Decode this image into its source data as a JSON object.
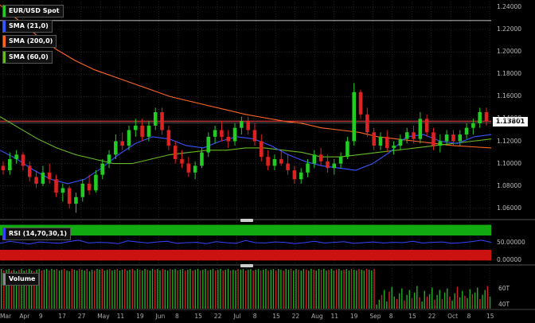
{
  "colors": {
    "background": "#000000",
    "grid": "#3a3a3a",
    "up_candle": "#22cc22",
    "down_candle": "#dd2222",
    "sma21": "#3355ff",
    "sma200": "#ff6622",
    "sma60": "#66bb22",
    "resistance": "#ff4444",
    "rsi_line": "#3344ff",
    "rsi_overbought": "#11aa11",
    "rsi_oversold": "#cc1111",
    "volume_up": "#22aa22",
    "volume_down": "#cc2222"
  },
  "legend": {
    "symbol": "EUR/USD Spot",
    "sma21": "SMA (21,0)",
    "sma200": "SMA (200,0)",
    "sma60": "SMA (60,0)",
    "rsi": "RSI (14,70,30,1)",
    "volume": "Volume"
  },
  "price_tag": "1.13801",
  "chart_data": [
    {
      "type": "candlestick",
      "title": "EUR/USD Spot",
      "y_ticks": [
        "1.24000",
        "1.22000",
        "1.20000",
        "1.18000",
        "1.16000",
        "1.14000",
        "1.12000",
        "1.10000",
        "1.08000",
        "1.06000"
      ],
      "ylim": [
        1.052,
        1.245
      ],
      "last_price": 1.13801,
      "x_ticks": [
        "Mar",
        "Apr",
        "9",
        "17",
        "27",
        "May",
        "11",
        "19",
        "Jun",
        "8",
        "15",
        "22",
        "Jul",
        "8",
        "15",
        "22",
        "Aug",
        "11",
        "19",
        "Sep",
        "8",
        "15",
        "22",
        "Oct",
        "8",
        "15"
      ],
      "candles": [
        [
          1.098,
          1.102,
          1.09,
          1.094
        ],
        [
          1.094,
          1.11,
          1.09,
          1.104
        ],
        [
          1.104,
          1.112,
          1.1,
          1.108
        ],
        [
          1.108,
          1.11,
          1.094,
          1.098
        ],
        [
          1.098,
          1.102,
          1.084,
          1.088
        ],
        [
          1.088,
          1.094,
          1.078,
          1.082
        ],
        [
          1.082,
          1.098,
          1.08,
          1.092
        ],
        [
          1.092,
          1.1,
          1.082,
          1.086
        ],
        [
          1.086,
          1.09,
          1.07,
          1.074
        ],
        [
          1.074,
          1.082,
          1.066,
          1.078
        ],
        [
          1.078,
          1.08,
          1.06,
          1.064
        ],
        [
          1.064,
          1.074,
          1.056,
          1.07
        ],
        [
          1.07,
          1.086,
          1.066,
          1.082
        ],
        [
          1.082,
          1.09,
          1.072,
          1.076
        ],
        [
          1.076,
          1.094,
          1.074,
          1.09
        ],
        [
          1.09,
          1.104,
          1.086,
          1.1
        ],
        [
          1.1,
          1.112,
          1.096,
          1.108
        ],
        [
          1.108,
          1.126,
          1.104,
          1.12
        ],
        [
          1.12,
          1.128,
          1.112,
          1.116
        ],
        [
          1.116,
          1.134,
          1.112,
          1.13
        ],
        [
          1.13,
          1.14,
          1.124,
          1.134
        ],
        [
          1.134,
          1.14,
          1.12,
          1.124
        ],
        [
          1.124,
          1.138,
          1.12,
          1.134
        ],
        [
          1.134,
          1.15,
          1.13,
          1.146
        ],
        [
          1.146,
          1.15,
          1.126,
          1.13
        ],
        [
          1.13,
          1.134,
          1.112,
          1.116
        ],
        [
          1.116,
          1.12,
          1.1,
          1.104
        ],
        [
          1.104,
          1.112,
          1.096,
          1.1
        ],
        [
          1.1,
          1.106,
          1.088,
          1.092
        ],
        [
          1.092,
          1.102,
          1.086,
          1.098
        ],
        [
          1.098,
          1.114,
          1.096,
          1.11
        ],
        [
          1.11,
          1.128,
          1.106,
          1.124
        ],
        [
          1.124,
          1.134,
          1.118,
          1.13
        ],
        [
          1.13,
          1.138,
          1.12,
          1.124
        ],
        [
          1.124,
          1.13,
          1.114,
          1.12
        ],
        [
          1.12,
          1.136,
          1.116,
          1.132
        ],
        [
          1.132,
          1.142,
          1.126,
          1.138
        ],
        [
          1.138,
          1.142,
          1.126,
          1.13
        ],
        [
          1.13,
          1.136,
          1.116,
          1.12
        ],
        [
          1.12,
          1.126,
          1.102,
          1.106
        ],
        [
          1.106,
          1.112,
          1.094,
          1.098
        ],
        [
          1.098,
          1.108,
          1.094,
          1.104
        ],
        [
          1.104,
          1.112,
          1.098,
          1.1
        ],
        [
          1.1,
          1.108,
          1.09,
          1.094
        ],
        [
          1.094,
          1.098,
          1.082,
          1.086
        ],
        [
          1.086,
          1.096,
          1.082,
          1.092
        ],
        [
          1.092,
          1.104,
          1.088,
          1.1
        ],
        [
          1.1,
          1.112,
          1.096,
          1.108
        ],
        [
          1.108,
          1.114,
          1.098,
          1.102
        ],
        [
          1.102,
          1.108,
          1.092,
          1.096
        ],
        [
          1.096,
          1.104,
          1.09,
          1.1
        ],
        [
          1.1,
          1.11,
          1.096,
          1.106
        ],
        [
          1.106,
          1.124,
          1.104,
          1.12
        ],
        [
          1.12,
          1.172,
          1.116,
          1.164
        ],
        [
          1.164,
          1.166,
          1.14,
          1.144
        ],
        [
          1.144,
          1.15,
          1.124,
          1.128
        ],
        [
          1.128,
          1.132,
          1.112,
          1.116
        ],
        [
          1.116,
          1.128,
          1.112,
          1.124
        ],
        [
          1.124,
          1.13,
          1.11,
          1.114
        ],
        [
          1.114,
          1.12,
          1.108,
          1.116
        ],
        [
          1.116,
          1.126,
          1.112,
          1.122
        ],
        [
          1.122,
          1.132,
          1.118,
          1.128
        ],
        [
          1.128,
          1.134,
          1.118,
          1.122
        ],
        [
          1.122,
          1.146,
          1.118,
          1.14
        ],
        [
          1.14,
          1.144,
          1.124,
          1.128
        ],
        [
          1.128,
          1.132,
          1.112,
          1.116
        ],
        [
          1.116,
          1.126,
          1.11,
          1.12
        ],
        [
          1.12,
          1.13,
          1.116,
          1.126
        ],
        [
          1.126,
          1.13,
          1.116,
          1.12
        ],
        [
          1.12,
          1.13,
          1.116,
          1.126
        ],
        [
          1.126,
          1.136,
          1.122,
          1.132
        ],
        [
          1.132,
          1.14,
          1.126,
          1.136
        ],
        [
          1.136,
          1.15,
          1.132,
          1.146
        ],
        [
          1.146,
          1.15,
          1.134,
          1.138
        ]
      ],
      "sma_21": [
        1.112,
        1.104,
        1.094,
        1.086,
        1.082,
        1.086,
        1.096,
        1.108,
        1.118,
        1.124,
        1.122,
        1.116,
        1.114,
        1.12,
        1.124,
        1.122,
        1.116,
        1.108,
        1.102,
        1.098,
        1.096,
        1.094,
        1.1,
        1.11,
        1.124,
        1.126,
        1.12,
        1.118,
        1.124,
        1.126
      ],
      "sma_200": [
        1.242,
        1.228,
        1.214,
        1.202,
        1.192,
        1.184,
        1.178,
        1.172,
        1.166,
        1.16,
        1.156,
        1.152,
        1.148,
        1.144,
        1.141,
        1.138,
        1.136,
        1.132,
        1.13,
        1.128,
        1.124,
        1.122,
        1.12,
        1.118,
        1.116,
        1.115,
        1.114
      ],
      "sma_60": [
        1.142,
        1.132,
        1.122,
        1.114,
        1.108,
        1.104,
        1.1,
        1.1,
        1.104,
        1.108,
        1.11,
        1.112,
        1.112,
        1.114,
        1.114,
        1.112,
        1.11,
        1.106,
        1.106,
        1.108,
        1.11,
        1.112,
        1.114,
        1.116,
        1.118,
        1.12,
        1.122
      ]
    },
    {
      "type": "line",
      "title": "RSI (14,70,30,1)",
      "y_ticks": [
        "50.00000",
        "0.00000"
      ],
      "ylim": [
        -8,
        108
      ],
      "overbought": 70,
      "oversold": 30,
      "values": [
        48,
        54,
        50,
        46,
        52,
        50,
        48,
        53,
        57,
        49,
        51,
        50,
        47,
        55,
        52,
        49,
        52,
        54,
        48,
        50,
        51,
        47,
        53,
        50,
        48,
        56,
        50,
        49,
        52,
        51,
        47,
        50,
        54,
        49,
        51,
        53,
        48,
        50,
        52,
        49,
        51,
        50,
        54,
        49,
        51,
        52,
        48,
        50,
        53,
        57,
        51
      ]
    },
    {
      "type": "bar",
      "title": "Volume",
      "y_ticks": [
        "60T",
        "40T"
      ],
      "ylim": [
        35,
        85
      ],
      "values": [
        84,
        82,
        83,
        84,
        82,
        83,
        81,
        83,
        84,
        82,
        83,
        84,
        82,
        81,
        83,
        84,
        82,
        83,
        84,
        82,
        84,
        83,
        84,
        82,
        83,
        84,
        82,
        81,
        84,
        83,
        82,
        84,
        83,
        82,
        84,
        81,
        83,
        82,
        84,
        83,
        84,
        82,
        83,
        84,
        82,
        83,
        84,
        82,
        83,
        84,
        82,
        83,
        84,
        82,
        84,
        83,
        82,
        84,
        83,
        82,
        84,
        83,
        84,
        82,
        84,
        83,
        82,
        84,
        83,
        84,
        82,
        83,
        84,
        82,
        83,
        84,
        82,
        83,
        84,
        82,
        83,
        84,
        82,
        83,
        84,
        82,
        83,
        84,
        82,
        83,
        84,
        82,
        83,
        82,
        84,
        83,
        84,
        82,
        83,
        84,
        82,
        83,
        84,
        82,
        83,
        84,
        82,
        83,
        84,
        82,
        84,
        83,
        82,
        84,
        83,
        84,
        82,
        84,
        83,
        82,
        84,
        83,
        82,
        84,
        83,
        82,
        84,
        83,
        84,
        82,
        83,
        84,
        82,
        83,
        84,
        82,
        83,
        84,
        82,
        84,
        83,
        82,
        84,
        83,
        82,
        84,
        83,
        82,
        84,
        40,
        46,
        52,
        58,
        44,
        56,
        62,
        50,
        47,
        54,
        60,
        45,
        52,
        58,
        48,
        55,
        63,
        49,
        44,
        57,
        50,
        53,
        61,
        46,
        52,
        58,
        47,
        55,
        60,
        50,
        45,
        54,
        62,
        49,
        57,
        51,
        48,
        59,
        53,
        55,
        61,
        47,
        52,
        58,
        63,
        50
      ]
    }
  ]
}
